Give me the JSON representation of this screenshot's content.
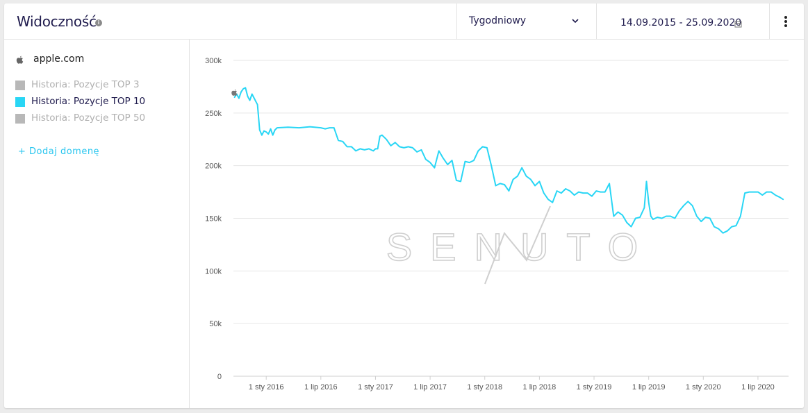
{
  "header": {
    "title": "Widoczność",
    "period": "Tygodniowy",
    "date_range": "14.09.2015 - 25.09.2020"
  },
  "sidebar": {
    "domain": "apple.com",
    "legend": [
      {
        "label": "Historia: Pozycje TOP 3",
        "color": "#b8b8b8",
        "active": false
      },
      {
        "label": "Historia: Pozycje TOP 10",
        "color": "#29d6f5",
        "active": true
      },
      {
        "label": "Historia: Pozycje TOP 50",
        "color": "#b8b8b8",
        "active": false
      }
    ],
    "add_domain": "+ Dodaj domenę"
  },
  "watermark": "SENUTO",
  "colors": {
    "accent": "#29d6f5",
    "title": "#1f1b4d",
    "grid": "#e6e6e6"
  },
  "chart_data": {
    "type": "line",
    "title": "",
    "xlabel": "",
    "ylabel": "",
    "ylim": [
      0,
      300000
    ],
    "yticks": [
      "0",
      "50k",
      "100k",
      "150k",
      "200k",
      "250k",
      "300k"
    ],
    "ytick_values": [
      0,
      50000,
      100000,
      150000,
      200000,
      250000,
      300000
    ],
    "xticks": [
      "1 sty 2016",
      "1 lip 2016",
      "1 sty 2017",
      "1 lip 2017",
      "1 sty 2018",
      "1 lip 2018",
      "1 sty 2019",
      "1 lip 2019",
      "1 sty 2020",
      "1 lip 2020"
    ],
    "xtick_values": [
      2016.0,
      2016.5,
      2017.0,
      2017.5,
      2018.0,
      2018.5,
      2019.0,
      2019.5,
      2020.0,
      2020.5
    ],
    "xlim": [
      2015.7,
      2020.78
    ],
    "series": [
      {
        "name": "Historia: Pozycje TOP 10",
        "color": "#29d6f5",
        "x": [
          2015.71,
          2015.73,
          2015.75,
          2015.77,
          2015.79,
          2015.81,
          2015.83,
          2015.85,
          2015.87,
          2015.89,
          2015.91,
          2015.92,
          2015.94,
          2015.96,
          2015.98,
          2016.0,
          2016.02,
          2016.04,
          2016.06,
          2016.08,
          2016.1,
          2016.2,
          2016.3,
          2016.4,
          2016.5,
          2016.54,
          2016.58,
          2016.62,
          2016.66,
          2016.7,
          2016.74,
          2016.78,
          2016.82,
          2016.86,
          2016.9,
          2016.94,
          2016.98,
          2017.0,
          2017.02,
          2017.04,
          2017.06,
          2017.1,
          2017.14,
          2017.18,
          2017.22,
          2017.26,
          2017.3,
          2017.34,
          2017.38,
          2017.42,
          2017.46,
          2017.5,
          2017.54,
          2017.58,
          2017.62,
          2017.66,
          2017.7,
          2017.74,
          2017.78,
          2017.82,
          2017.86,
          2017.9,
          2017.94,
          2017.98,
          2018.02,
          2018.06,
          2018.1,
          2018.14,
          2018.18,
          2018.22,
          2018.26,
          2018.3,
          2018.34,
          2018.38,
          2018.42,
          2018.46,
          2018.5,
          2018.54,
          2018.58,
          2018.62,
          2018.66,
          2018.7,
          2018.74,
          2018.78,
          2018.82,
          2018.86,
          2018.9,
          2018.94,
          2018.98,
          2019.02,
          2019.06,
          2019.1,
          2019.14,
          2019.18,
          2019.22,
          2019.26,
          2019.3,
          2019.34,
          2019.38,
          2019.42,
          2019.46,
          2019.48,
          2019.5,
          2019.52,
          2019.54,
          2019.58,
          2019.62,
          2019.66,
          2019.7,
          2019.74,
          2019.78,
          2019.82,
          2019.86,
          2019.9,
          2019.94,
          2019.98,
          2020.02,
          2020.06,
          2020.1,
          2020.14,
          2020.18,
          2020.22,
          2020.26,
          2020.3,
          2020.34,
          2020.38,
          2020.42,
          2020.46,
          2020.5,
          2020.54,
          2020.58,
          2020.62,
          2020.66,
          2020.7,
          2020.73
        ],
        "values": [
          265000,
          268000,
          264000,
          270000,
          273000,
          274000,
          266000,
          262000,
          268000,
          264000,
          260000,
          258000,
          234000,
          229000,
          233000,
          232000,
          230000,
          235000,
          229000,
          234000,
          236000,
          236500,
          236000,
          237000,
          236000,
          235000,
          236000,
          236000,
          224000,
          223000,
          218000,
          218000,
          214000,
          216000,
          215000,
          216000,
          214000,
          216000,
          216000,
          228000,
          229000,
          225000,
          219000,
          222000,
          218000,
          217000,
          218000,
          217000,
          213000,
          215000,
          206000,
          203000,
          198000,
          214000,
          207000,
          201000,
          205000,
          186000,
          185000,
          204000,
          203000,
          205000,
          214000,
          218000,
          217000,
          200000,
          181000,
          183000,
          182000,
          176000,
          187000,
          190000,
          198000,
          190000,
          187000,
          181000,
          185000,
          174000,
          168000,
          165000,
          176000,
          174000,
          178000,
          176000,
          172000,
          175000,
          174000,
          174000,
          171000,
          176000,
          175000,
          175000,
          183000,
          152000,
          156000,
          153000,
          146000,
          142000,
          150000,
          151000,
          160000,
          185000,
          165000,
          152000,
          149000,
          151000,
          150000,
          152000,
          152000,
          150000,
          157000,
          162000,
          166000,
          162000,
          152000,
          147000,
          151000,
          150000,
          142000,
          140000,
          136000,
          138000,
          142000,
          143000,
          152000,
          174000,
          175000,
          175000,
          175000,
          172000,
          175000,
          175000,
          172000,
          170000,
          168000
        ]
      }
    ]
  }
}
